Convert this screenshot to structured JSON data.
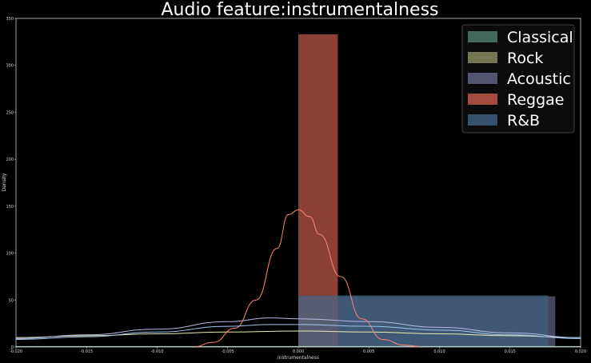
{
  "chart_data": {
    "type": "area",
    "title": "Audio feature:instrumentalness",
    "xlabel": "instrumentalness",
    "ylabel": "Density",
    "xlim": [
      -0.02,
      0.02
    ],
    "ylim": [
      0,
      350
    ],
    "x_ticks": [
      "-0.020",
      "-0.015",
      "-0.010",
      "-0.005",
      "0.000",
      "0.005",
      "0.010",
      "0.015",
      "0.020"
    ],
    "y_ticks": [
      "0",
      "50",
      "100",
      "150",
      "200",
      "250",
      "300",
      "350"
    ],
    "legend_position": "top-right",
    "series": [
      {
        "name": "Classical",
        "color": "#4e7a6e",
        "histogram": [],
        "kde": {
          "x": [
            -0.02,
            -0.015,
            -0.01,
            -0.005,
            0.0,
            0.005,
            0.01,
            0.015,
            0.02
          ],
          "y": [
            0.5,
            0.5,
            0.5,
            0.5,
            0.5,
            0.5,
            0.5,
            0.5,
            0.5
          ]
        }
      },
      {
        "name": "Rock",
        "color": "#8a8a5a",
        "histogram": [],
        "kde": {
          "x": [
            -0.02,
            -0.015,
            -0.01,
            -0.005,
            0.0,
            0.005,
            0.01,
            0.015,
            0.02
          ],
          "y": [
            10,
            12,
            14,
            16,
            17,
            16,
            14,
            12,
            10
          ]
        }
      },
      {
        "name": "Acoustic",
        "color": "#5f6282",
        "histogram": [
          {
            "x0": 0.0,
            "x1": 0.0182,
            "y": 54
          }
        ],
        "kde": {
          "x": [
            -0.02,
            -0.015,
            -0.01,
            -0.005,
            -0.002,
            0.0,
            0.005,
            0.01,
            0.015,
            0.02
          ],
          "y": [
            9,
            13,
            19,
            27,
            31,
            30,
            27,
            21,
            15,
            10
          ]
        }
      },
      {
        "name": "Reggae",
        "color": "#c0584a",
        "histogram": [
          {
            "x0": 0.0,
            "x1": 0.0028,
            "y": 333
          }
        ],
        "kde": {
          "x": [
            -0.0075,
            -0.006,
            -0.0045,
            -0.003,
            -0.0015,
            -0.0007,
            0.0,
            0.0008,
            0.0015,
            0.003,
            0.0045,
            0.006,
            0.0075,
            0.009
          ],
          "y": [
            0,
            5,
            20,
            50,
            105,
            141,
            146,
            139,
            120,
            75,
            30,
            8,
            2,
            0
          ]
        }
      },
      {
        "name": "R&B",
        "color": "#3d5f7e",
        "histogram": [
          {
            "x0": 0.0,
            "x1": 0.0177,
            "y": 55
          }
        ],
        "kde": {
          "x": [
            -0.02,
            -0.015,
            -0.01,
            -0.005,
            -0.002,
            0.0,
            0.005,
            0.01,
            0.015,
            0.02
          ],
          "y": [
            8,
            11,
            16,
            22,
            24,
            24,
            22,
            18,
            13,
            9
          ]
        }
      }
    ]
  }
}
